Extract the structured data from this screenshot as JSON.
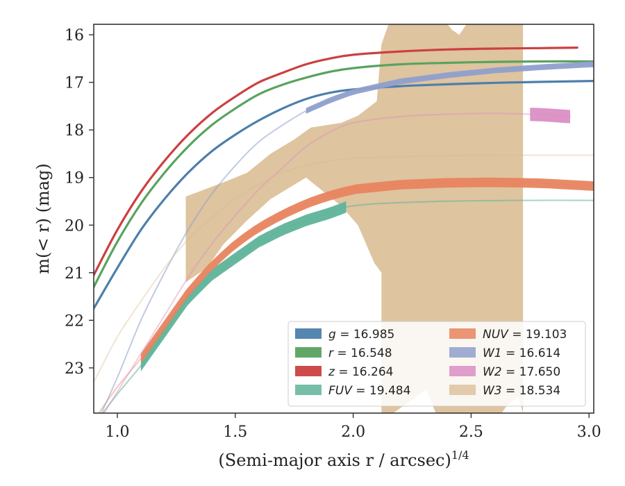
{
  "chart_data": {
    "type": "line",
    "title": "",
    "xlabel": "(Semi-major axis r / arcsec)",
    "xlabel_power": "1/4",
    "ylabel": "m(< r) (mag)",
    "xlim": [
      0.9,
      3.02
    ],
    "ylim": [
      23.95,
      15.78
    ],
    "y_inverted": true,
    "grid": false,
    "legend_position": "lower-right",
    "legend_columns": 2,
    "xticks": [
      "1.0",
      "1.5",
      "2.0",
      "2.5",
      "3.0"
    ],
    "yticks": [
      "16",
      "17",
      "18",
      "19",
      "20",
      "21",
      "22",
      "23"
    ],
    "series": [
      {
        "name": "g",
        "label_value": "16.985",
        "color": "#4c7fab",
        "x": [
          0.9,
          1.0,
          1.1,
          1.2,
          1.3,
          1.4,
          1.5,
          1.6,
          1.7,
          1.8,
          1.9,
          2.0,
          2.2,
          2.4,
          2.6,
          2.8,
          3.02
        ],
        "y": [
          21.75,
          20.9,
          20.1,
          19.45,
          18.9,
          18.45,
          18.1,
          17.8,
          17.55,
          17.35,
          17.22,
          17.15,
          17.08,
          17.04,
          17.01,
          16.99,
          16.97
        ],
        "band": 0.03,
        "alpha": 1
      },
      {
        "name": "r",
        "label_value": "16.548",
        "color": "#59a35e",
        "x": [
          0.9,
          1.0,
          1.1,
          1.2,
          1.3,
          1.4,
          1.5,
          1.6,
          1.7,
          1.8,
          1.9,
          2.0,
          2.2,
          2.4,
          2.6,
          2.8,
          3.02
        ],
        "y": [
          21.3,
          20.35,
          19.55,
          18.9,
          18.35,
          17.9,
          17.55,
          17.25,
          17.05,
          16.9,
          16.78,
          16.7,
          16.62,
          16.59,
          16.57,
          16.56,
          16.56
        ],
        "band": 0.03,
        "alpha": 1
      },
      {
        "name": "z",
        "label_value": "16.264",
        "color": "#cc4040",
        "x": [
          0.9,
          1.0,
          1.1,
          1.2,
          1.3,
          1.4,
          1.5,
          1.6,
          1.7,
          1.8,
          1.9,
          2.0,
          2.2,
          2.4,
          2.6,
          2.8,
          2.95
        ],
        "y": [
          21.05,
          20.1,
          19.3,
          18.65,
          18.1,
          17.65,
          17.3,
          17.0,
          16.8,
          16.62,
          16.5,
          16.42,
          16.35,
          16.31,
          16.29,
          16.28,
          16.27
        ],
        "band": 0.03,
        "alpha": 1
      },
      {
        "name": "FUV",
        "label_value": "19.484",
        "color": "#5fb39a",
        "x": [
          0.9,
          1.0,
          1.1,
          1.2,
          1.3,
          1.4,
          1.5,
          1.6,
          1.7,
          1.8,
          1.9,
          1.97,
          2.1,
          2.3,
          2.5,
          2.7,
          3.02
        ],
        "y": [
          24.2,
          23.55,
          22.95,
          22.25,
          21.55,
          21.05,
          20.7,
          20.35,
          20.1,
          19.9,
          19.75,
          19.62,
          19.55,
          19.51,
          19.49,
          19.48,
          19.48
        ],
        "band_x": [
          1.1,
          1.97
        ],
        "band": 0.12,
        "alpha": 0.55
      },
      {
        "name": "NUV",
        "label_value": "19.103",
        "color": "#e8845f",
        "x": [
          0.9,
          1.0,
          1.1,
          1.2,
          1.3,
          1.4,
          1.5,
          1.6,
          1.7,
          1.8,
          1.9,
          2.0,
          2.2,
          2.4,
          2.6,
          2.8,
          3.02
        ],
        "y": [
          24.1,
          23.4,
          22.8,
          22.1,
          21.4,
          20.85,
          20.4,
          20.05,
          19.78,
          19.55,
          19.38,
          19.25,
          19.15,
          19.11,
          19.1,
          19.12,
          19.18
        ],
        "band_x": [
          1.1,
          3.02
        ],
        "band": 0.1,
        "alpha": 0.45
      },
      {
        "name": "W1",
        "label_value": "16.614",
        "color": "#8f9fcc",
        "x": [
          0.9,
          1.0,
          1.1,
          1.2,
          1.3,
          1.4,
          1.5,
          1.6,
          1.7,
          1.8,
          1.9,
          2.0,
          2.2,
          2.4,
          2.6,
          2.8,
          3.02
        ],
        "y": [
          24.3,
          23.2,
          22.0,
          21.0,
          20.1,
          19.35,
          18.75,
          18.25,
          17.9,
          17.6,
          17.38,
          17.2,
          16.98,
          16.85,
          16.75,
          16.68,
          16.62
        ],
        "band_x": [
          1.8,
          3.02
        ],
        "band": 0.06,
        "alpha": 0.55
      },
      {
        "name": "W2",
        "label_value": "17.650",
        "color": "#db8ec4",
        "x": [
          0.9,
          1.0,
          1.1,
          1.2,
          1.3,
          1.4,
          1.5,
          1.6,
          1.7,
          1.8,
          1.9,
          2.0,
          2.2,
          2.4,
          2.6,
          2.8,
          2.92
        ],
        "y": [
          24.3,
          23.5,
          22.7,
          21.9,
          21.1,
          20.4,
          19.8,
          19.25,
          18.8,
          18.35,
          18.05,
          17.85,
          17.72,
          17.67,
          17.65,
          17.68,
          17.72
        ],
        "band_x": [
          2.75,
          2.92
        ],
        "band": 0.14,
        "alpha": 0.45
      },
      {
        "name": "W3",
        "label_value": "18.534",
        "color": "#d9bc92",
        "x": [
          0.9,
          1.0,
          1.1,
          1.2,
          1.3,
          1.4,
          1.5,
          1.6,
          1.7,
          1.8,
          1.9,
          2.0,
          2.2,
          2.4,
          2.6,
          2.72,
          3.02
        ],
        "y": [
          23.3,
          22.35,
          21.6,
          20.9,
          20.3,
          19.85,
          19.45,
          19.15,
          18.9,
          18.75,
          18.65,
          18.6,
          18.56,
          18.54,
          18.53,
          18.53,
          18.53
        ],
        "alpha": 0.4,
        "band_polygon_x": [
          1.29,
          1.29,
          1.45,
          1.55,
          1.65,
          1.75,
          1.82,
          1.95,
          2.02,
          2.1,
          2.12,
          2.15,
          2.4,
          2.42,
          2.45,
          2.48,
          2.72,
          2.72,
          2.7,
          2.65,
          2.63,
          2.35,
          2.31,
          2.17,
          2.12,
          2.12,
          2.09,
          2.02,
          1.95,
          1.8,
          1.65,
          1.55,
          1.45,
          1.38,
          1.29
        ],
        "band_polygon_y": [
          23.65,
          19.4,
          19.1,
          18.9,
          18.5,
          18.2,
          17.95,
          17.85,
          17.7,
          17.4,
          16.2,
          15.78,
          15.78,
          15.9,
          16.0,
          15.78,
          15.78,
          23.95,
          23.6,
          23.8,
          23.95,
          23.95,
          23.45,
          23.95,
          23.95,
          21.0,
          20.8,
          20.0,
          19.6,
          19.0,
          19.45,
          19.9,
          20.4,
          20.9,
          21.2
        ]
      }
    ]
  }
}
